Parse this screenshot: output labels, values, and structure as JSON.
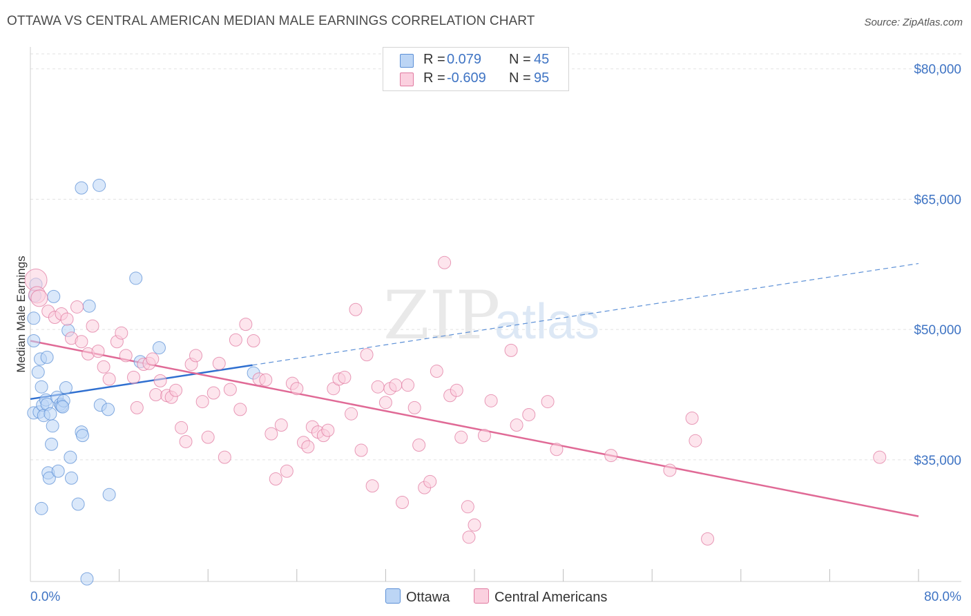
{
  "header": {
    "title": "OTTAWA VS CENTRAL AMERICAN MEDIAN MALE EARNINGS CORRELATION CHART",
    "source": "Source: ZipAtlas.com"
  },
  "watermark": {
    "zip": "ZIP",
    "atlas": "atlas"
  },
  "legend": {
    "rows": [
      {
        "r_label": "R =",
        "r_value": "0.079",
        "n_label": "N =",
        "n_value": "45",
        "color": "#a9c8f0",
        "border": "#5b8fd6"
      },
      {
        "r_label": "R =",
        "r_value": "-0.609",
        "n_label": "N =",
        "n_value": "95",
        "color": "#f7bcd0",
        "border": "#e07aa0"
      }
    ]
  },
  "bottom_legend": [
    {
      "label": "Ottawa",
      "color": "#bcd5f5",
      "border": "#5b8fd6"
    },
    {
      "label": "Central Americans",
      "color": "#fbd0df",
      "border": "#e07aa0"
    }
  ],
  "chart_data": {
    "type": "scatter",
    "title": "OTTAWA VS CENTRAL AMERICAN MEDIAN MALE EARNINGS CORRELATION CHART",
    "xlabel": "",
    "ylabel": "Median Male Earnings",
    "xlim": [
      0,
      80
    ],
    "ylim": [
      21000,
      83000
    ],
    "x_tick_labels": [
      "0.0%",
      "80.0%"
    ],
    "y_ticks": [
      35000,
      50000,
      65000,
      80000
    ],
    "y_tick_labels": [
      "$35,000",
      "$50,000",
      "$65,000",
      "$80,000"
    ],
    "grid": "horizontal dashed",
    "legend_position": "top-center",
    "series": [
      {
        "name": "Ottawa",
        "color": "#5b8fd6",
        "fill": "#bcd5f5",
        "points": [
          [
            0.3,
            51300
          ],
          [
            0.3,
            48700
          ],
          [
            0.3,
            40400
          ],
          [
            0.4,
            53900
          ],
          [
            0.5,
            55200
          ],
          [
            0.7,
            45100
          ],
          [
            0.8,
            40500
          ],
          [
            0.9,
            46600
          ],
          [
            1.0,
            43400
          ],
          [
            1.1,
            41300
          ],
          [
            1.2,
            40100
          ],
          [
            1.4,
            41900
          ],
          [
            1.5,
            41400
          ],
          [
            1.5,
            46800
          ],
          [
            1.6,
            33500
          ],
          [
            1.7,
            32900
          ],
          [
            1.9,
            36800
          ],
          [
            2.0,
            38900
          ],
          [
            2.1,
            53800
          ],
          [
            2.4,
            42200
          ],
          [
            2.5,
            33700
          ],
          [
            2.7,
            41400
          ],
          [
            2.8,
            41200
          ],
          [
            3.0,
            41800
          ],
          [
            3.2,
            43300
          ],
          [
            3.4,
            49900
          ],
          [
            3.6,
            35300
          ],
          [
            3.7,
            32900
          ],
          [
            4.3,
            29900
          ],
          [
            4.6,
            38200
          ],
          [
            4.7,
            37800
          ],
          [
            4.6,
            66300
          ],
          [
            5.1,
            21300
          ],
          [
            5.3,
            52700
          ],
          [
            6.2,
            66600
          ],
          [
            6.3,
            41300
          ],
          [
            7.0,
            40800
          ],
          [
            7.1,
            31000
          ],
          [
            9.5,
            55900
          ],
          [
            9.9,
            46300
          ],
          [
            11.6,
            47900
          ],
          [
            20.1,
            45000
          ],
          [
            2.9,
            41100
          ],
          [
            1.0,
            29400
          ],
          [
            1.8,
            40300
          ]
        ]
      },
      {
        "name": "Central Americans",
        "color": "#e07aa0",
        "fill": "#fbd0df",
        "points": [
          [
            0.5,
            55700
          ],
          [
            0.6,
            54000
          ],
          [
            0.8,
            53600
          ],
          [
            1.6,
            52100
          ],
          [
            2.2,
            51400
          ],
          [
            2.8,
            51800
          ],
          [
            3.3,
            51200
          ],
          [
            3.7,
            49000
          ],
          [
            4.2,
            52600
          ],
          [
            4.6,
            48600
          ],
          [
            5.2,
            47200
          ],
          [
            5.6,
            50400
          ],
          [
            6.1,
            47500
          ],
          [
            6.6,
            45700
          ],
          [
            7.1,
            44300
          ],
          [
            7.8,
            48600
          ],
          [
            8.2,
            49600
          ],
          [
            8.6,
            47000
          ],
          [
            9.3,
            44500
          ],
          [
            9.6,
            41000
          ],
          [
            10.2,
            46000
          ],
          [
            10.7,
            46100
          ],
          [
            11.0,
            46600
          ],
          [
            11.3,
            42500
          ],
          [
            11.7,
            44100
          ],
          [
            12.3,
            42400
          ],
          [
            12.7,
            42200
          ],
          [
            13.1,
            43000
          ],
          [
            13.6,
            38700
          ],
          [
            14.0,
            37100
          ],
          [
            14.5,
            46000
          ],
          [
            14.9,
            47000
          ],
          [
            15.5,
            41700
          ],
          [
            16.0,
            37600
          ],
          [
            16.5,
            42700
          ],
          [
            17.0,
            46100
          ],
          [
            17.5,
            35300
          ],
          [
            18.0,
            43100
          ],
          [
            18.5,
            48800
          ],
          [
            18.9,
            40800
          ],
          [
            19.4,
            50600
          ],
          [
            20.1,
            48700
          ],
          [
            20.6,
            44300
          ],
          [
            21.2,
            44200
          ],
          [
            21.7,
            38000
          ],
          [
            22.1,
            32800
          ],
          [
            22.6,
            39000
          ],
          [
            23.1,
            33700
          ],
          [
            23.6,
            43800
          ],
          [
            24.0,
            43200
          ],
          [
            24.6,
            37000
          ],
          [
            25.0,
            36500
          ],
          [
            25.4,
            38800
          ],
          [
            25.9,
            38200
          ],
          [
            26.4,
            37800
          ],
          [
            26.8,
            38400
          ],
          [
            27.3,
            43200
          ],
          [
            27.8,
            44300
          ],
          [
            28.3,
            44500
          ],
          [
            28.9,
            40300
          ],
          [
            29.3,
            52300
          ],
          [
            29.8,
            36100
          ],
          [
            30.3,
            47100
          ],
          [
            30.8,
            32000
          ],
          [
            31.3,
            43400
          ],
          [
            32.0,
            41600
          ],
          [
            32.4,
            43200
          ],
          [
            32.9,
            43600
          ],
          [
            33.5,
            30100
          ],
          [
            34.0,
            43600
          ],
          [
            34.6,
            41000
          ],
          [
            35.0,
            36700
          ],
          [
            35.5,
            31800
          ],
          [
            36.0,
            32500
          ],
          [
            36.6,
            45200
          ],
          [
            37.3,
            57700
          ],
          [
            37.8,
            42400
          ],
          [
            38.4,
            43000
          ],
          [
            38.8,
            37600
          ],
          [
            39.4,
            29600
          ],
          [
            40.0,
            27500
          ],
          [
            40.9,
            37800
          ],
          [
            41.5,
            41800
          ],
          [
            43.3,
            47600
          ],
          [
            43.8,
            39000
          ],
          [
            44.9,
            40200
          ],
          [
            46.6,
            41700
          ],
          [
            47.4,
            36200
          ],
          [
            52.3,
            35500
          ],
          [
            57.6,
            33800
          ],
          [
            59.6,
            39800
          ],
          [
            59.9,
            37200
          ],
          [
            61.0,
            25900
          ],
          [
            76.5,
            35300
          ],
          [
            39.5,
            26100
          ]
        ]
      }
    ],
    "trend_lines": [
      {
        "series": "Ottawa",
        "solid": [
          [
            0,
            42000
          ],
          [
            20,
            45900
          ]
        ],
        "dashed": [
          [
            20,
            45900
          ],
          [
            80,
            57600
          ]
        ]
      },
      {
        "series": "Central Americans",
        "solid": [
          [
            0,
            48700
          ],
          [
            80,
            28500
          ]
        ]
      }
    ]
  }
}
